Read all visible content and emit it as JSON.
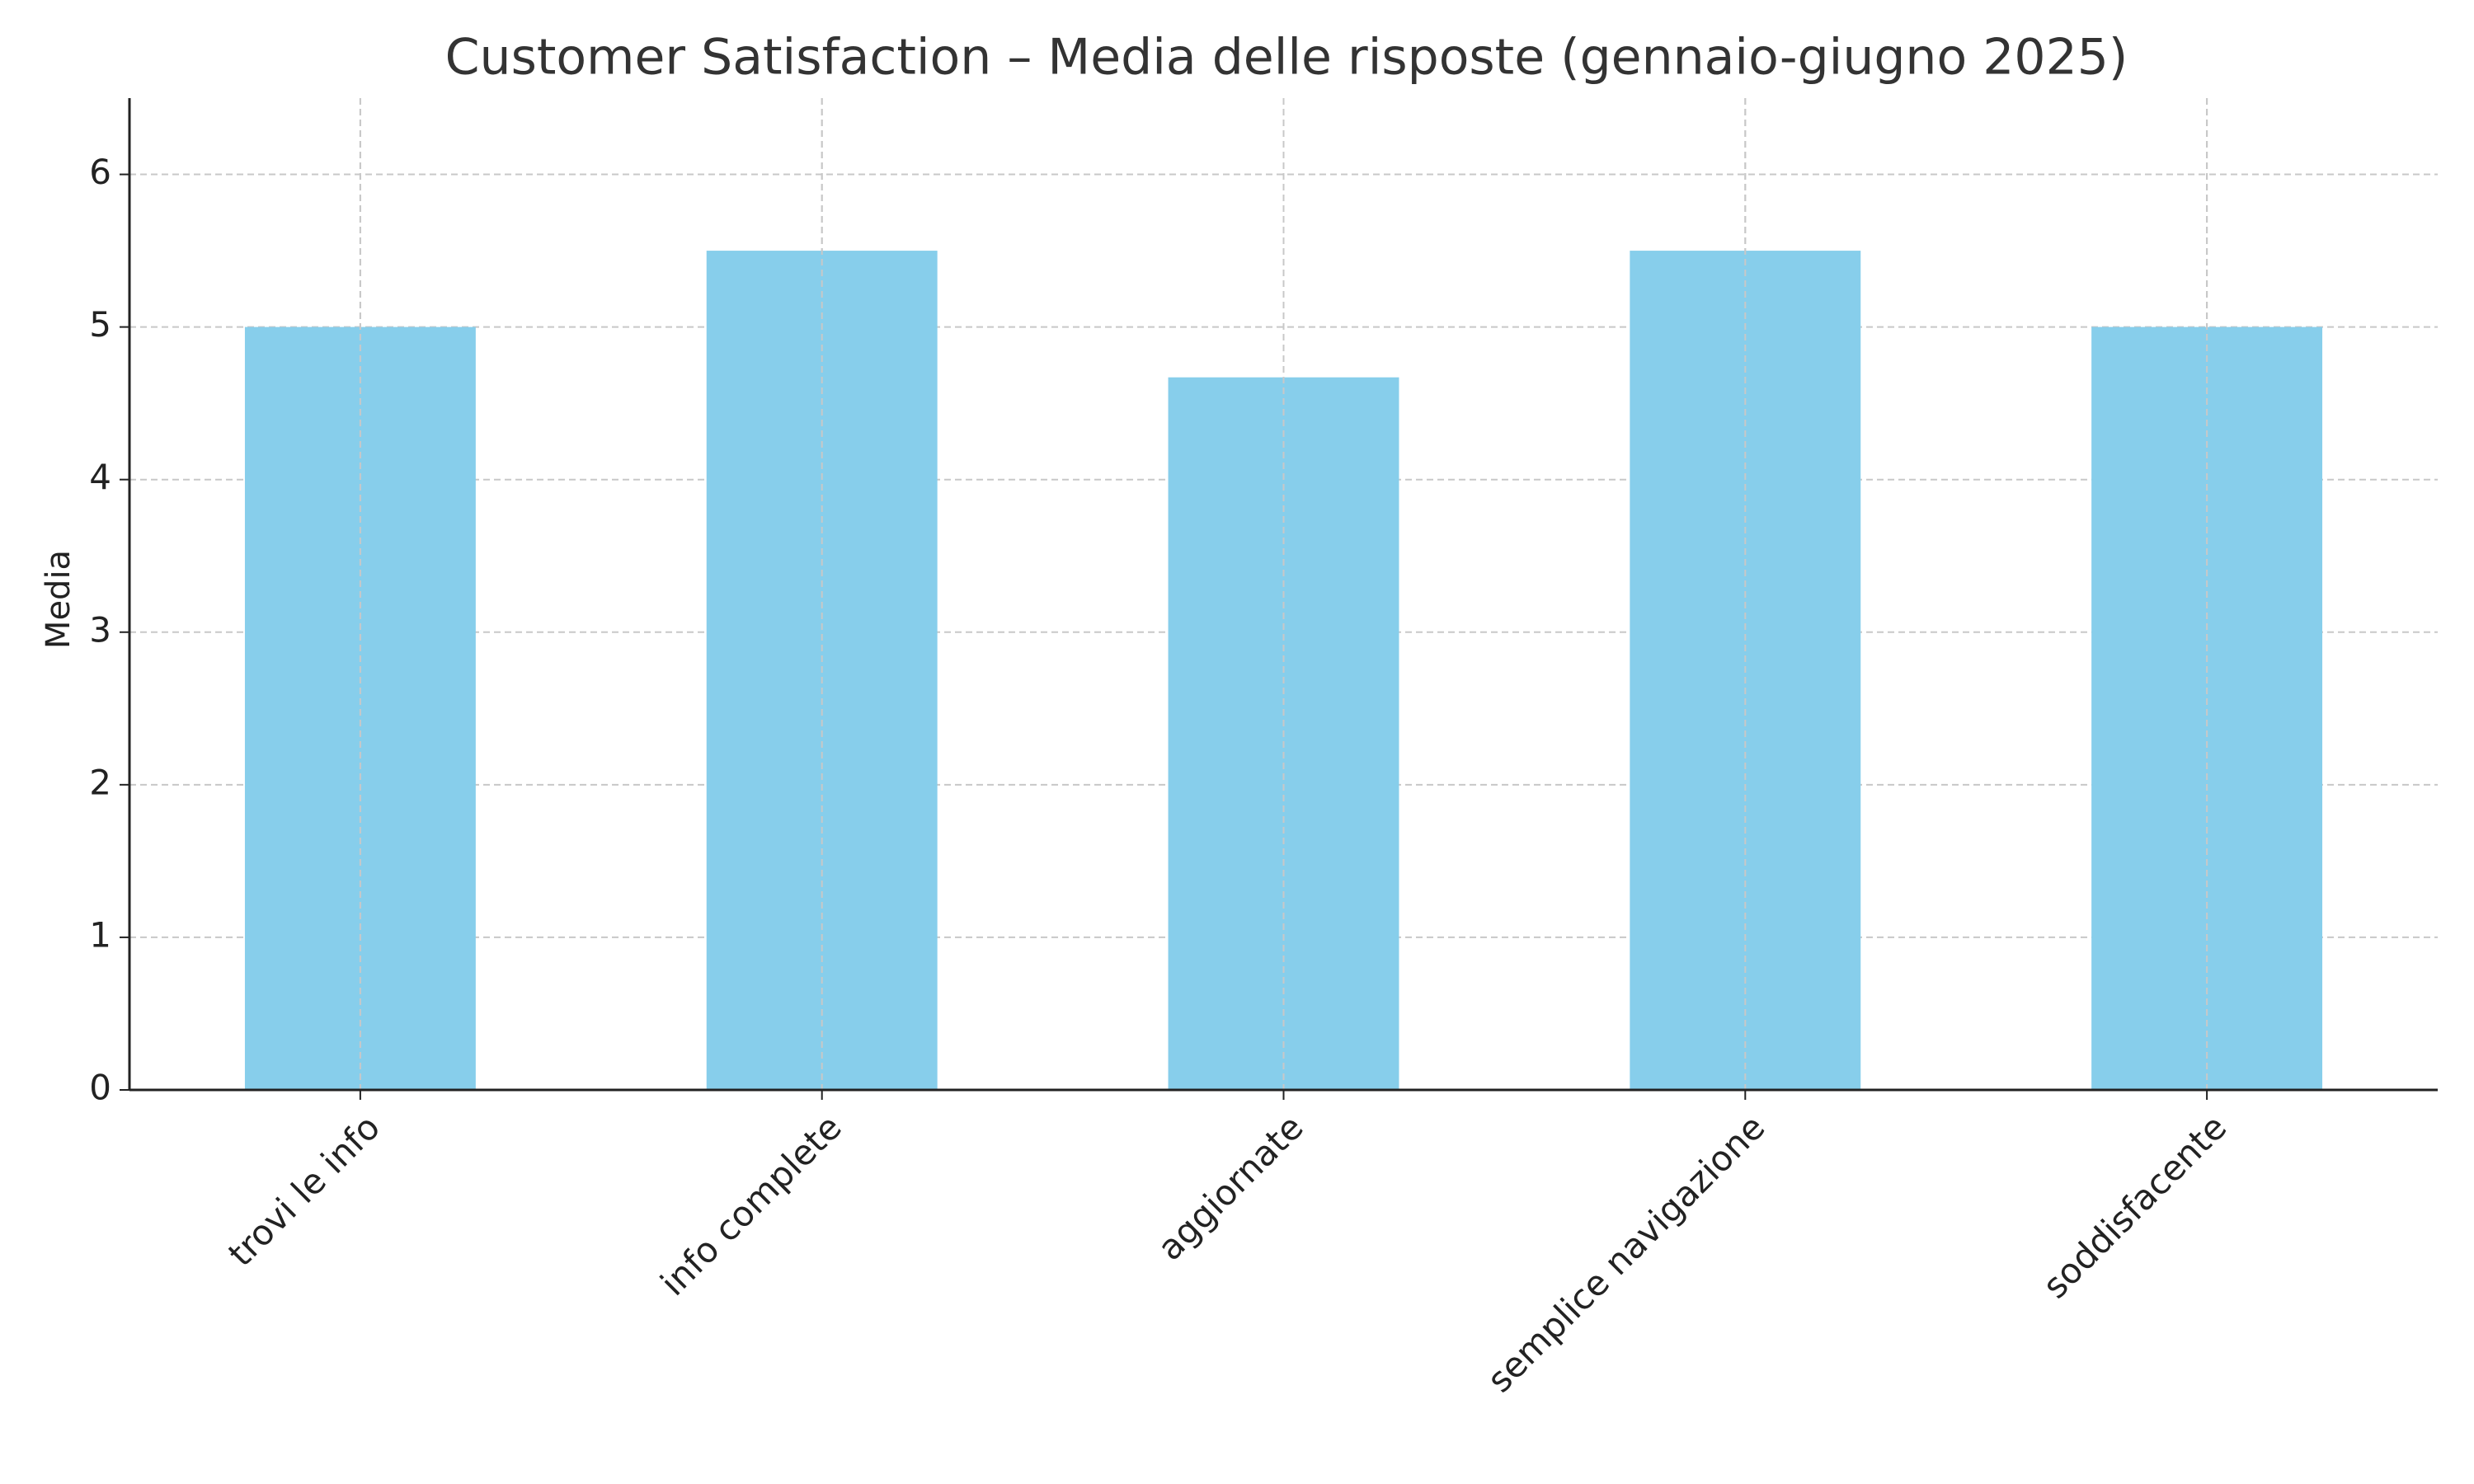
{
  "chart_data": {
    "type": "bar",
    "title": "Customer Satisfaction – Media delle risposte (gennaio-giugno 2025)",
    "y_label": "Media",
    "categories": [
      "trovi le info",
      "info complete",
      "aggiornate",
      "semplice navigazione",
      "soddisfacente"
    ],
    "values": [
      5,
      5.5,
      4.67,
      5.5,
      5
    ],
    "color": "#87ceeb",
    "ylim": [
      0,
      6.5
    ],
    "yticks": [
      0,
      1,
      2,
      3,
      4,
      5,
      6
    ],
    "grid": true
  }
}
